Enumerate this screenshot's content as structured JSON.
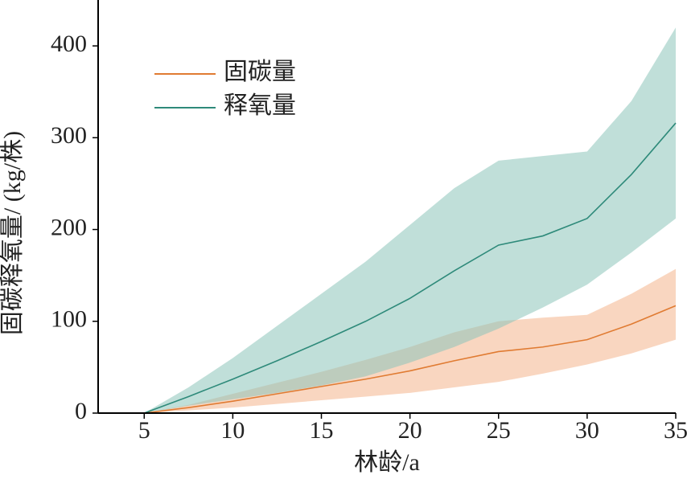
{
  "chart_data": {
    "type": "line",
    "x": [
      5,
      7.5,
      10,
      12.5,
      15,
      17.5,
      20,
      22.5,
      25,
      27.5,
      30,
      32.5,
      35
    ],
    "series": [
      {
        "name": "固碳量",
        "color": "#e07b32",
        "band_color": "#f4b48c",
        "values": [
          0,
          6,
          13,
          21,
          29,
          37,
          46,
          57,
          67,
          72,
          80,
          97,
          117
        ],
        "lower": [
          0,
          3,
          6,
          10,
          14,
          18,
          22,
          28,
          34,
          43,
          53,
          65,
          80
        ],
        "upper": [
          0,
          9,
          21,
          33,
          45,
          58,
          72,
          88,
          100,
          104,
          107,
          130,
          157
        ]
      },
      {
        "name": "释氧量",
        "color": "#2e8a7a",
        "band_color": "#8cc4b9",
        "values": [
          0,
          18,
          37,
          57,
          78,
          100,
          125,
          155,
          183,
          193,
          212,
          260,
          316
        ],
        "lower": [
          0,
          8,
          15,
          22,
          30,
          40,
          55,
          72,
          92,
          115,
          140,
          175,
          212
        ],
        "upper": [
          0,
          28,
          60,
          95,
          130,
          165,
          205,
          245,
          275,
          280,
          285,
          340,
          420
        ]
      }
    ],
    "x_label": "林龄/a",
    "y_label": "固碳释氧量/ (kg/株)",
    "xlim": [
      2.4,
      35
    ],
    "xticks": [
      5,
      10,
      15,
      20,
      25,
      30,
      35
    ],
    "ylim": [
      0,
      450
    ],
    "yticks": [
      0,
      100,
      200,
      300,
      400
    ],
    "legend": "upper left"
  }
}
